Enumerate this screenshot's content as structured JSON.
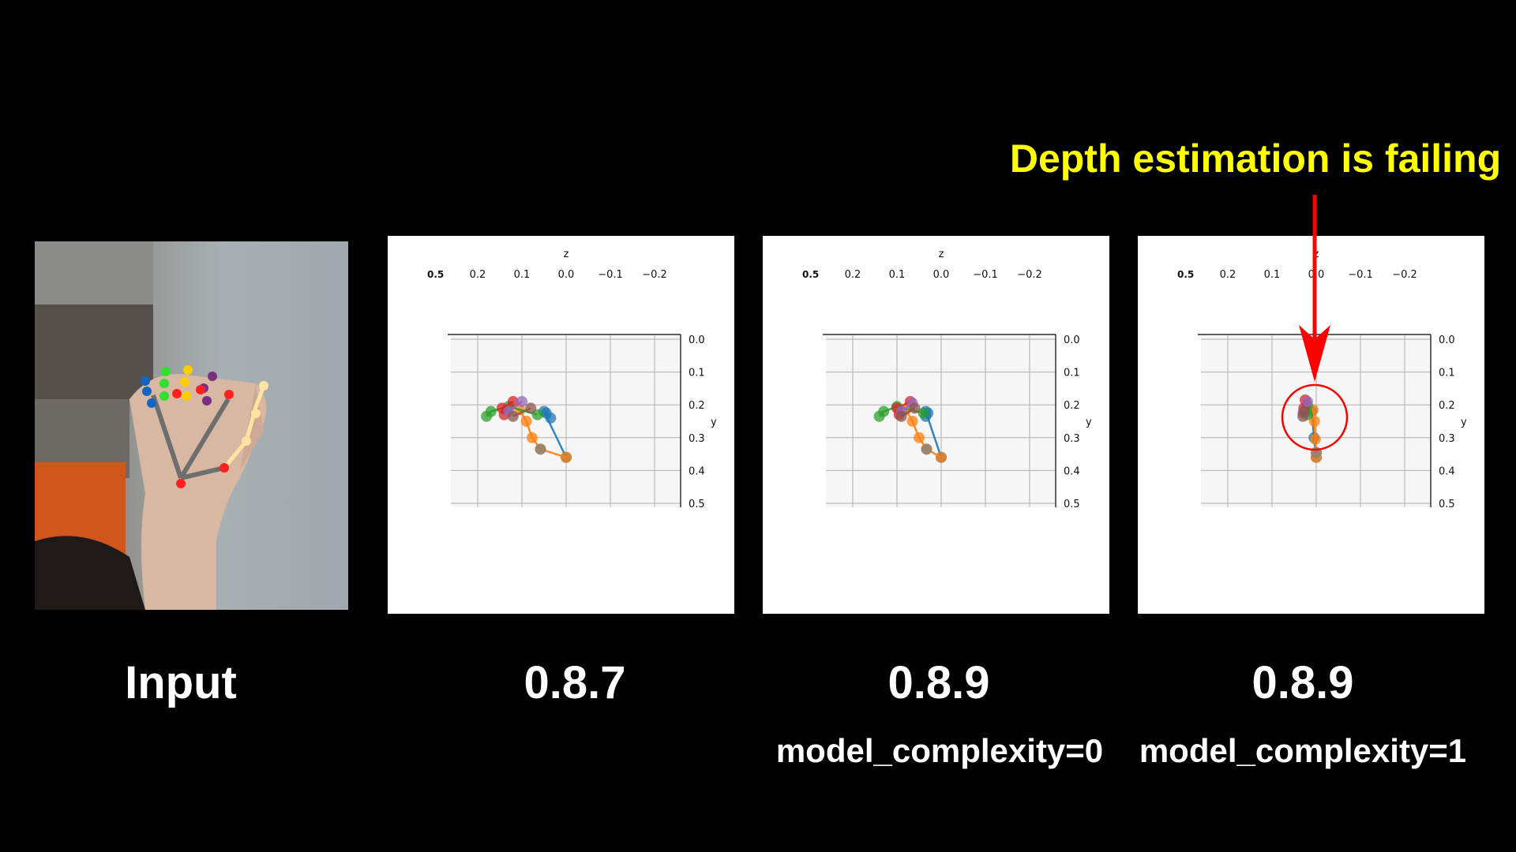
{
  "headline": "Depth estimation is failing",
  "colors": {
    "headline": "#ffff00",
    "annotation": "#ff0000",
    "background": "#000000"
  },
  "panels": [
    {
      "caption": "Input",
      "subcaption": ""
    },
    {
      "caption": "0.8.7",
      "subcaption": ""
    },
    {
      "caption": "0.8.9",
      "subcaption": "model_complexity=0"
    },
    {
      "caption": "0.8.9",
      "subcaption": "model_complexity=1"
    }
  ],
  "chart_data": [
    {
      "type": "scatter",
      "version": "0.8.7",
      "xlabel": "z",
      "ylabel": "y",
      "xlim": [
        0.26,
        -0.26
      ],
      "ylim": [
        0.0,
        0.5
      ],
      "grid": true,
      "overlap_label": "0.5",
      "xticks": [
        "0.2",
        "0.1",
        "0.0",
        "−0.1",
        "−0.2"
      ],
      "xtick_values": [
        0.2,
        0.1,
        0.0,
        -0.1,
        -0.2
      ],
      "yticks": [
        "0.0",
        "0.1",
        "0.2",
        "0.3",
        "0.4",
        "0.5"
      ],
      "ytick_values": [
        0,
        0.1,
        0.2,
        0.3,
        0.4,
        0.5
      ],
      "series": [
        {
          "color": "#1f77b4",
          "points": [
            [
              0.0,
              0.36
            ],
            [
              0.05,
              0.22
            ],
            [
              0.045,
              0.225
            ],
            [
              0.035,
              0.24
            ]
          ]
        },
        {
          "color": "#ff7f0e",
          "points": [
            [
              0.0,
              0.36
            ],
            [
              0.058,
              0.335
            ],
            [
              0.077,
              0.3
            ],
            [
              0.09,
              0.25
            ],
            [
              0.105,
              0.215
            ]
          ]
        },
        {
          "color": "#2ca02c",
          "points": [
            [
              0.065,
              0.23
            ],
            [
              0.13,
              0.205
            ],
            [
              0.17,
              0.22
            ],
            [
              0.18,
              0.235
            ]
          ]
        },
        {
          "color": "#d62728",
          "points": [
            [
              0.12,
              0.19
            ],
            [
              0.145,
              0.21
            ],
            [
              0.14,
              0.23
            ]
          ]
        },
        {
          "color": "#9467bd",
          "points": [
            [
              0.1,
              0.19
            ],
            [
              0.13,
              0.22
            ]
          ]
        },
        {
          "color": "#8c564b",
          "points": [
            [
              0.08,
              0.21
            ],
            [
              0.12,
              0.235
            ]
          ]
        },
        {
          "color": "#7f7f7f",
          "points": [
            [
              0.058,
              0.335
            ]
          ]
        }
      ]
    },
    {
      "type": "scatter",
      "version": "0.8.9 model_complexity=0",
      "xlabel": "z",
      "ylabel": "y",
      "xlim": [
        0.26,
        -0.26
      ],
      "ylim": [
        0.0,
        0.5
      ],
      "grid": true,
      "overlap_label": "0.5",
      "xticks": [
        "0.2",
        "0.1",
        "0.0",
        "−0.1",
        "−0.2"
      ],
      "xtick_values": [
        0.2,
        0.1,
        0.0,
        -0.1,
        -0.2
      ],
      "yticks": [
        "0.0",
        "0.1",
        "0.2",
        "0.3",
        "0.4",
        "0.5"
      ],
      "ytick_values": [
        0,
        0.1,
        0.2,
        0.3,
        0.4,
        0.5
      ],
      "series": [
        {
          "color": "#1f77b4",
          "points": [
            [
              0.0,
              0.36
            ],
            [
              0.035,
              0.22
            ],
            [
              0.03,
              0.225
            ],
            [
              0.035,
              0.235
            ]
          ]
        },
        {
          "color": "#ff7f0e",
          "points": [
            [
              0.0,
              0.36
            ],
            [
              0.033,
              0.335
            ],
            [
              0.05,
              0.3
            ],
            [
              0.065,
              0.25
            ],
            [
              0.08,
              0.215
            ]
          ]
        },
        {
          "color": "#2ca02c",
          "points": [
            [
              0.04,
              0.225
            ],
            [
              0.1,
              0.205
            ],
            [
              0.13,
              0.22
            ],
            [
              0.14,
              0.235
            ]
          ]
        },
        {
          "color": "#d62728",
          "points": [
            [
              0.07,
              0.19
            ],
            [
              0.1,
              0.21
            ],
            [
              0.095,
              0.23
            ]
          ]
        },
        {
          "color": "#9467bd",
          "points": [
            [
              0.065,
              0.195
            ],
            [
              0.09,
              0.22
            ]
          ]
        },
        {
          "color": "#8c564b",
          "points": [
            [
              0.06,
              0.21
            ],
            [
              0.09,
              0.235
            ]
          ]
        },
        {
          "color": "#7f7f7f",
          "points": [
            [
              0.033,
              0.335
            ]
          ]
        }
      ]
    },
    {
      "type": "scatter",
      "version": "0.8.9 model_complexity=1",
      "xlabel": "z",
      "ylabel": "y",
      "xlim": [
        0.26,
        -0.26
      ],
      "ylim": [
        0.0,
        0.5
      ],
      "grid": true,
      "overlap_label": "0.5",
      "xticks": [
        "0.2",
        "0.1",
        "0.0",
        "−0.1",
        "−0.2"
      ],
      "xtick_values": [
        0.2,
        0.1,
        0.0,
        -0.1,
        -0.2
      ],
      "yticks": [
        "0.0",
        "0.1",
        "0.2",
        "0.3",
        "0.4",
        "0.5"
      ],
      "ytick_values": [
        0,
        0.1,
        0.2,
        0.3,
        0.4,
        0.5
      ],
      "series": [
        {
          "color": "#1f77b4",
          "points": [
            [
              0.0,
              0.36
            ],
            [
              0.005,
              0.3
            ],
            [
              0.01,
              0.22
            ]
          ]
        },
        {
          "color": "#ff7f0e",
          "points": [
            [
              0.0,
              0.36
            ],
            [
              0.0,
              0.345
            ],
            [
              0.002,
              0.305
            ],
            [
              0.004,
              0.25
            ],
            [
              0.007,
              0.215
            ]
          ]
        },
        {
          "color": "#2ca02c",
          "points": [
            [
              0.02,
              0.2
            ],
            [
              0.022,
              0.215
            ],
            [
              0.02,
              0.23
            ]
          ]
        },
        {
          "color": "#d62728",
          "points": [
            [
              0.025,
              0.185
            ],
            [
              0.028,
              0.21
            ]
          ]
        },
        {
          "color": "#9467bd",
          "points": [
            [
              0.02,
              0.19
            ],
            [
              0.03,
              0.225
            ]
          ]
        },
        {
          "color": "#8c564b",
          "points": [
            [
              0.03,
              0.235
            ],
            [
              0.028,
              0.22
            ]
          ]
        },
        {
          "color": "#7f7f7f",
          "points": [
            [
              0.0,
              0.345
            ]
          ]
        }
      ]
    }
  ]
}
